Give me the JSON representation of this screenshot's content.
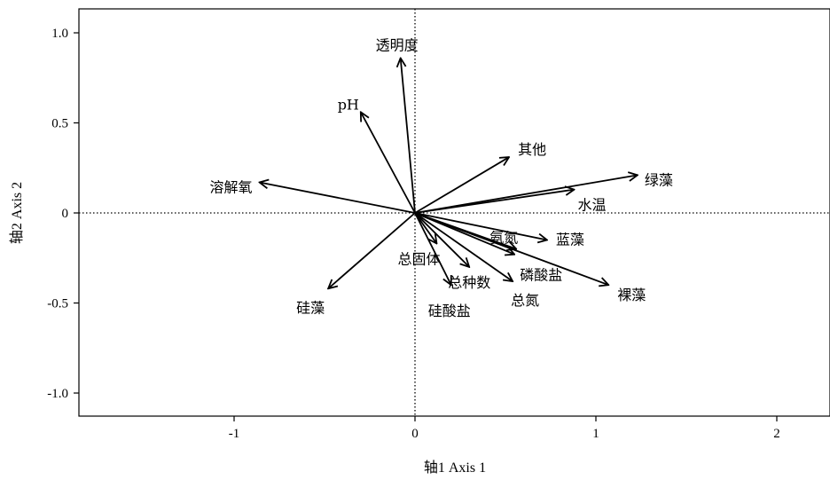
{
  "chart_data": {
    "type": "biplot",
    "xlabel": "轴1 Axis 1",
    "ylabel": "轴2 Axis 2",
    "xlim": [
      -1.85,
      2.3
    ],
    "ylim": [
      -1.13,
      1.13
    ],
    "x_ticks": [
      -1,
      0,
      1,
      2
    ],
    "x_tick_labels": [
      "-1",
      "0",
      "1",
      "2"
    ],
    "y_ticks": [
      1.0,
      0.5,
      0,
      -0.5,
      -1.0
    ],
    "y_tick_labels": [
      "1.0",
      "0.5",
      "0",
      "-0.5",
      "-1.0"
    ],
    "reference_lines": {
      "x": 0,
      "y": 0,
      "style": "dotted"
    },
    "grid": false,
    "vectors": [
      {
        "name": "透明度",
        "x": -0.08,
        "y": 0.86
      },
      {
        "name": "pH",
        "x": -0.3,
        "y": 0.56
      },
      {
        "name": "溶解氧",
        "x": -0.86,
        "y": 0.17
      },
      {
        "name": "硅藻",
        "x": -0.48,
        "y": -0.42
      },
      {
        "name": "其他",
        "x": 0.52,
        "y": 0.31
      },
      {
        "name": "绿藻",
        "x": 1.23,
        "y": 0.21
      },
      {
        "name": "水温",
        "x": 0.88,
        "y": 0.13
      },
      {
        "name": "氨氮",
        "x": 0.56,
        "y": -0.2
      },
      {
        "name": "蓝藻",
        "x": 0.73,
        "y": -0.15
      },
      {
        "name": "磷酸盐",
        "x": 0.55,
        "y": -0.23
      },
      {
        "name": "裸藻",
        "x": 1.07,
        "y": -0.4
      },
      {
        "name": "总氮",
        "x": 0.54,
        "y": -0.38
      },
      {
        "name": "总种数",
        "x": 0.3,
        "y": -0.3
      },
      {
        "name": "总固体",
        "x": 0.12,
        "y": -0.17
      },
      {
        "name": "硅酸盐",
        "x": 0.2,
        "y": -0.4
      }
    ]
  }
}
